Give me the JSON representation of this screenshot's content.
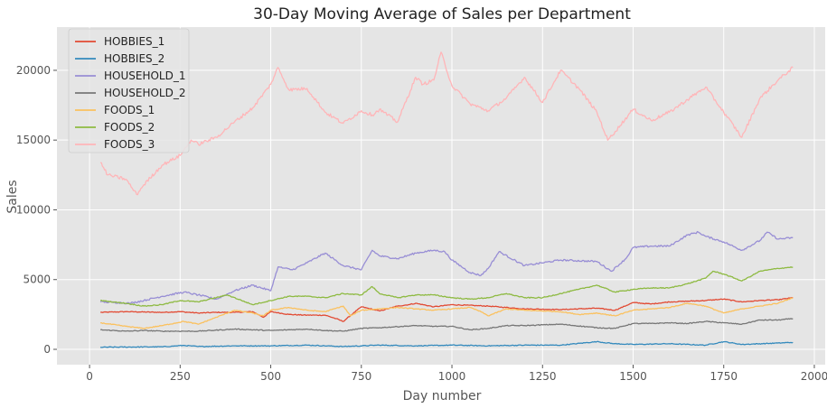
{
  "chart_data": {
    "type": "line",
    "title": "30-Day Moving Average of Sales per Department",
    "xlabel": "Day number",
    "ylabel": "Sales",
    "xlim": [
      -90,
      2030
    ],
    "ylim": [
      -1100,
      23100
    ],
    "xticks": [
      0,
      250,
      500,
      750,
      1000,
      1250,
      1500,
      1750,
      2000
    ],
    "yticks": [
      0,
      5000,
      10000,
      15000,
      20000
    ],
    "grid": true,
    "legend": "top-left",
    "style": "ggplot",
    "series": [
      {
        "name": "HOBBIES_1",
        "color": "#E24A33",
        "x": [
          30,
          100,
          200,
          250,
          300,
          350,
          400,
          450,
          480,
          500,
          550,
          600,
          650,
          680,
          700,
          750,
          800,
          850,
          880,
          900,
          950,
          1000,
          1100,
          1200,
          1300,
          1400,
          1450,
          1500,
          1550,
          1600,
          1650,
          1700,
          1750,
          1800,
          1850,
          1900,
          1941
        ],
        "y": [
          2650,
          2700,
          2650,
          2700,
          2600,
          2650,
          2650,
          2700,
          2300,
          2700,
          2500,
          2450,
          2450,
          2200,
          2000,
          3050,
          2750,
          3100,
          3200,
          3300,
          3050,
          3200,
          3100,
          2900,
          2850,
          2950,
          2800,
          3350,
          3250,
          3400,
          3450,
          3500,
          3600,
          3400,
          3500,
          3550,
          3700
        ]
      },
      {
        "name": "HOBBIES_2",
        "color": "#348ABD",
        "x": [
          30,
          200,
          260,
          300,
          400,
          500,
          600,
          700,
          800,
          900,
          1000,
          1100,
          1200,
          1300,
          1400,
          1450,
          1500,
          1600,
          1700,
          1750,
          1800,
          1900,
          1941
        ],
        "y": [
          150,
          180,
          280,
          200,
          250,
          250,
          300,
          200,
          300,
          250,
          300,
          250,
          300,
          300,
          550,
          400,
          350,
          400,
          300,
          550,
          350,
          450,
          500
        ]
      },
      {
        "name": "HOUSEHOLD_1",
        "color": "#988ED5",
        "x": [
          30,
          80,
          110,
          150,
          200,
          260,
          300,
          350,
          400,
          450,
          500,
          520,
          560,
          600,
          650,
          700,
          750,
          780,
          800,
          850,
          900,
          950,
          980,
          1000,
          1050,
          1080,
          1100,
          1130,
          1200,
          1300,
          1400,
          1440,
          1480,
          1500,
          1550,
          1600,
          1650,
          1680,
          1700,
          1750,
          1800,
          1850,
          1870,
          1900,
          1941
        ],
        "y": [
          3400,
          3350,
          3300,
          3500,
          3800,
          4100,
          3900,
          3600,
          4200,
          4600,
          4200,
          5900,
          5700,
          6200,
          6900,
          6000,
          5700,
          7100,
          6700,
          6500,
          6900,
          7100,
          7000,
          6400,
          5500,
          5300,
          5800,
          7000,
          6000,
          6400,
          6300,
          5600,
          6500,
          7300,
          7400,
          7400,
          8200,
          8400,
          8100,
          7700,
          7100,
          7800,
          8400,
          7900,
          8000
        ]
      },
      {
        "name": "HOUSEHOLD_2",
        "color": "#777777",
        "x": [
          30,
          100,
          150,
          200,
          300,
          400,
          500,
          600,
          650,
          700,
          750,
          800,
          900,
          950,
          1000,
          1050,
          1100,
          1150,
          1200,
          1300,
          1400,
          1450,
          1500,
          1550,
          1600,
          1650,
          1700,
          1750,
          1800,
          1850,
          1900,
          1941
        ],
        "y": [
          1400,
          1300,
          1350,
          1300,
          1300,
          1450,
          1350,
          1450,
          1350,
          1300,
          1500,
          1550,
          1700,
          1650,
          1650,
          1400,
          1500,
          1700,
          1700,
          1800,
          1550,
          1500,
          1850,
          1850,
          1900,
          1850,
          2000,
          1900,
          1800,
          2100,
          2100,
          2200
        ]
      },
      {
        "name": "FOODS_1",
        "color": "#FBC15E",
        "x": [
          30,
          100,
          150,
          200,
          260,
          300,
          350,
          400,
          450,
          480,
          500,
          550,
          600,
          650,
          700,
          720,
          750,
          800,
          850,
          900,
          950,
          1000,
          1050,
          1080,
          1100,
          1150,
          1200,
          1300,
          1350,
          1400,
          1450,
          1500,
          1550,
          1600,
          1650,
          1700,
          1750,
          1800,
          1850,
          1900,
          1941
        ],
        "y": [
          1900,
          1650,
          1500,
          1700,
          2000,
          1800,
          2300,
          2800,
          2600,
          2400,
          2800,
          3000,
          2800,
          2700,
          3100,
          2400,
          2800,
          2900,
          3000,
          2900,
          2800,
          2900,
          3000,
          2700,
          2400,
          2900,
          2800,
          2700,
          2500,
          2600,
          2400,
          2800,
          2900,
          3000,
          3300,
          3100,
          2600,
          2900,
          3100,
          3300,
          3700
        ]
      },
      {
        "name": "FOODS_2",
        "color": "#8EBA42",
        "x": [
          30,
          100,
          150,
          200,
          250,
          300,
          380,
          450,
          500,
          550,
          600,
          650,
          700,
          750,
          780,
          800,
          850,
          900,
          950,
          1000,
          1050,
          1100,
          1150,
          1200,
          1250,
          1300,
          1350,
          1400,
          1450,
          1500,
          1550,
          1600,
          1650,
          1700,
          1720,
          1750,
          1780,
          1800,
          1850,
          1900,
          1941
        ],
        "y": [
          3500,
          3300,
          3100,
          3200,
          3500,
          3400,
          3900,
          3200,
          3500,
          3800,
          3800,
          3700,
          4000,
          3900,
          4500,
          4000,
          3700,
          3900,
          3900,
          3700,
          3600,
          3700,
          4000,
          3700,
          3700,
          4000,
          4300,
          4600,
          4100,
          4300,
          4400,
          4400,
          4700,
          5100,
          5600,
          5400,
          5100,
          4900,
          5600,
          5800,
          5900
        ]
      },
      {
        "name": "FOODS_3",
        "color": "#FFB5B8",
        "x": [
          30,
          50,
          100,
          130,
          150,
          200,
          250,
          280,
          300,
          350,
          400,
          450,
          500,
          520,
          550,
          600,
          650,
          700,
          750,
          780,
          800,
          850,
          900,
          920,
          950,
          970,
          1000,
          1050,
          1100,
          1150,
          1200,
          1250,
          1300,
          1350,
          1400,
          1430,
          1450,
          1500,
          1550,
          1600,
          1650,
          1700,
          1750,
          1800,
          1850,
          1900,
          1941
        ],
        "y": [
          13400,
          12500,
          12200,
          11100,
          11800,
          13200,
          13900,
          15000,
          14700,
          15200,
          16300,
          17300,
          19000,
          20200,
          18600,
          18700,
          17000,
          16200,
          17100,
          16800,
          17200,
          16300,
          19500,
          19000,
          19300,
          21300,
          18900,
          17600,
          17100,
          18000,
          19500,
          17700,
          20000,
          18700,
          17000,
          15000,
          15600,
          17200,
          16400,
          17000,
          17900,
          18800,
          17000,
          15200,
          18000,
          19300,
          20200
        ]
      }
    ]
  }
}
